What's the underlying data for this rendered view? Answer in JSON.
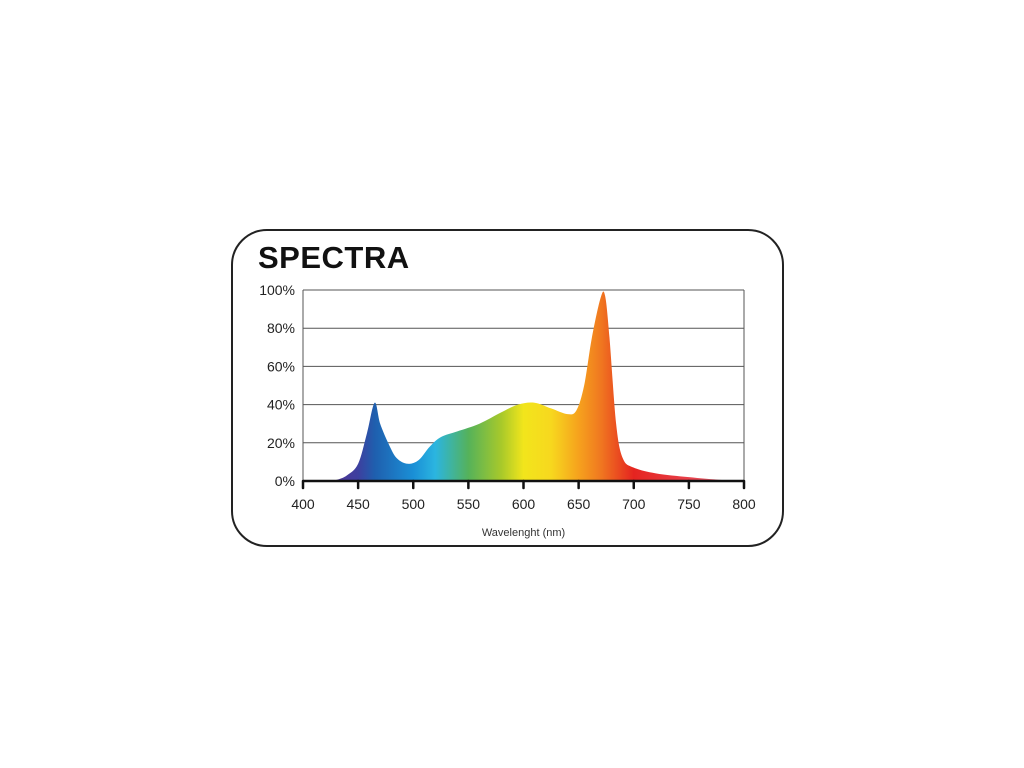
{
  "chart_data": {
    "type": "area",
    "title": "SPECTRA",
    "xlabel": "Wavelenght (nm)",
    "ylabel": "",
    "xlim": [
      400,
      800
    ],
    "ylim": [
      0,
      100
    ],
    "grid": true,
    "x_ticks": [
      "400",
      "450",
      "500",
      "550",
      "600",
      "650",
      "700",
      "750",
      "800"
    ],
    "y_ticks": [
      "0%",
      "20%",
      "40%",
      "60%",
      "80%",
      "100%"
    ],
    "x": [
      400,
      420,
      430,
      440,
      450,
      458,
      465,
      470,
      478,
      485,
      495,
      505,
      515,
      525,
      540,
      560,
      580,
      595,
      610,
      625,
      640,
      648,
      655,
      662,
      670,
      674,
      678,
      684,
      690,
      700,
      720,
      750,
      780,
      800
    ],
    "y": [
      0,
      0,
      0.5,
      3,
      9,
      25,
      41,
      30,
      19,
      12,
      9,
      11,
      18,
      23,
      26,
      30,
      36,
      40,
      41,
      38,
      35,
      37,
      50,
      75,
      96,
      97,
      75,
      30,
      12,
      7,
      4,
      2,
      0.5,
      0
    ],
    "gradient_colors": [
      {
        "nm": 400,
        "color": "#6a2c8c"
      },
      {
        "nm": 450,
        "color": "#3d3f9f"
      },
      {
        "nm": 465,
        "color": "#1f5fae"
      },
      {
        "nm": 500,
        "color": "#1a8fd6"
      },
      {
        "nm": 520,
        "color": "#2bb5e0"
      },
      {
        "nm": 550,
        "color": "#55b25a"
      },
      {
        "nm": 580,
        "color": "#a8c92a"
      },
      {
        "nm": 600,
        "color": "#f2e51c"
      },
      {
        "nm": 625,
        "color": "#f7d81e"
      },
      {
        "nm": 650,
        "color": "#f6a21d"
      },
      {
        "nm": 670,
        "color": "#f07820"
      },
      {
        "nm": 700,
        "color": "#e52420"
      },
      {
        "nm": 750,
        "color": "#e8404a"
      },
      {
        "nm": 800,
        "color": "#ec7890"
      }
    ]
  }
}
